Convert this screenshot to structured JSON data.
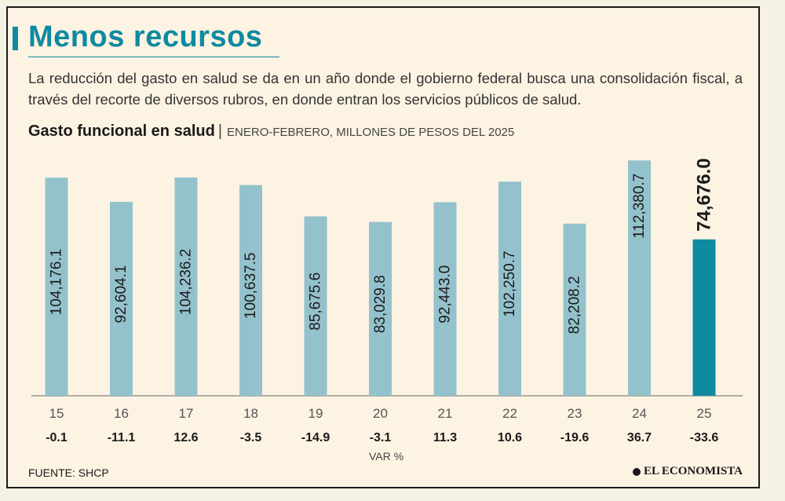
{
  "header": {
    "title": "Menos recursos",
    "description": "La reducción del gasto en salud se da en un año donde el gobierno federal busca  una consolidación fiscal, a través del recorte de diversos rubros, en donde entran los servicios públicos de salud."
  },
  "chart_subtitle": {
    "strong": "Gasto funcional en salud",
    "separator": "|",
    "rest": "ENERO-FEBRERO, MILLONES DE PESOS DEL 2025"
  },
  "chart_data": {
    "type": "bar",
    "title": "Gasto funcional en salud",
    "subtitle": "ENERO-FEBRERO, MILLONES DE PESOS DEL 2025",
    "categories": [
      "15",
      "16",
      "17",
      "18",
      "19",
      "20",
      "21",
      "22",
      "23",
      "24",
      "25"
    ],
    "values": [
      104176.1,
      92604.1,
      104236.2,
      100637.5,
      85675.6,
      83029.8,
      92443.0,
      102250.7,
      82208.2,
      112380.7,
      74676.0
    ],
    "value_labels": [
      "104,176.1",
      "92,604.1",
      "104,236.2",
      "100,637.5",
      "85,675.6",
      "83,029.8",
      "92,443.0",
      "102,250.7",
      "82,208.2",
      "112,380.7",
      "74,676.0"
    ],
    "var_pct": [
      "-0.1",
      "-11.1",
      "12.6",
      "-3.5",
      "-14.9",
      "-3.1",
      "11.3",
      "10.6",
      "-19.6",
      "36.7",
      "-33.6"
    ],
    "var_label": "VAR %",
    "ylim": [
      0,
      114000
    ],
    "grid": false,
    "highlight_index": 10,
    "colors": {
      "bar": "#94c2cc",
      "highlight": "#0e8aa0",
      "axis": "#666666"
    }
  },
  "footer": {
    "source": "FUENTE: SHCP",
    "brand": "EL ECONOMISTA",
    "brand_icon": "el-economista-logo-icon"
  }
}
